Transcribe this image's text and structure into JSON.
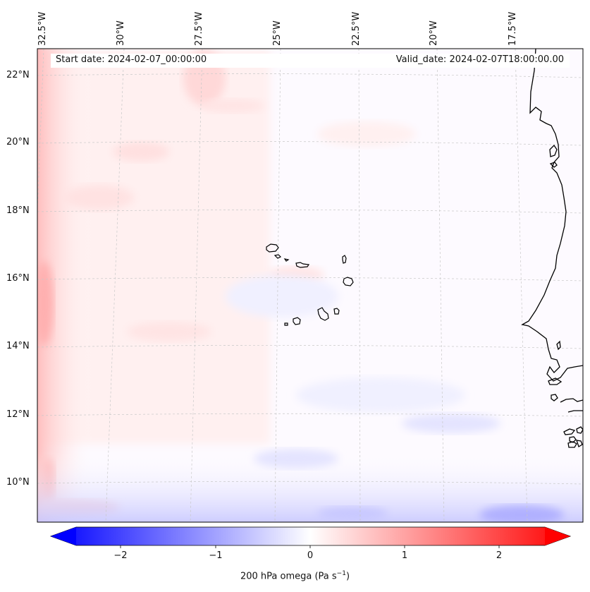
{
  "map": {
    "title_start": "Start date: 2024-02-07_00:00:00",
    "title_valid": "Valid_date: 2024-02-07T18:00:00.00",
    "longitude_labels": [
      "32.5°W",
      "30°W",
      "27.5°W",
      "25°W",
      "22.5°W",
      "20°W",
      "17.5°W"
    ],
    "latitude_labels": [
      "22°N",
      "20°N",
      "18°N",
      "16°N",
      "14°N",
      "12°N",
      "10°N"
    ],
    "field": "200 hPa omega",
    "colormap": "bwr",
    "colors": {
      "negative": "#0000ff",
      "zero": "#ffffff",
      "positive": "#ff0000",
      "coast": "#000000",
      "grid": "#c8c8c8"
    }
  },
  "colorbar": {
    "ticks": [
      "−2",
      "−1",
      "0",
      "1",
      "2"
    ],
    "tick_values": [
      -2,
      -1,
      0,
      1,
      2
    ],
    "range": [
      -2.5,
      2.5
    ],
    "label_main": "200 hPa omega (Pa s",
    "label_sup": "−1",
    "label_end": ")"
  }
}
